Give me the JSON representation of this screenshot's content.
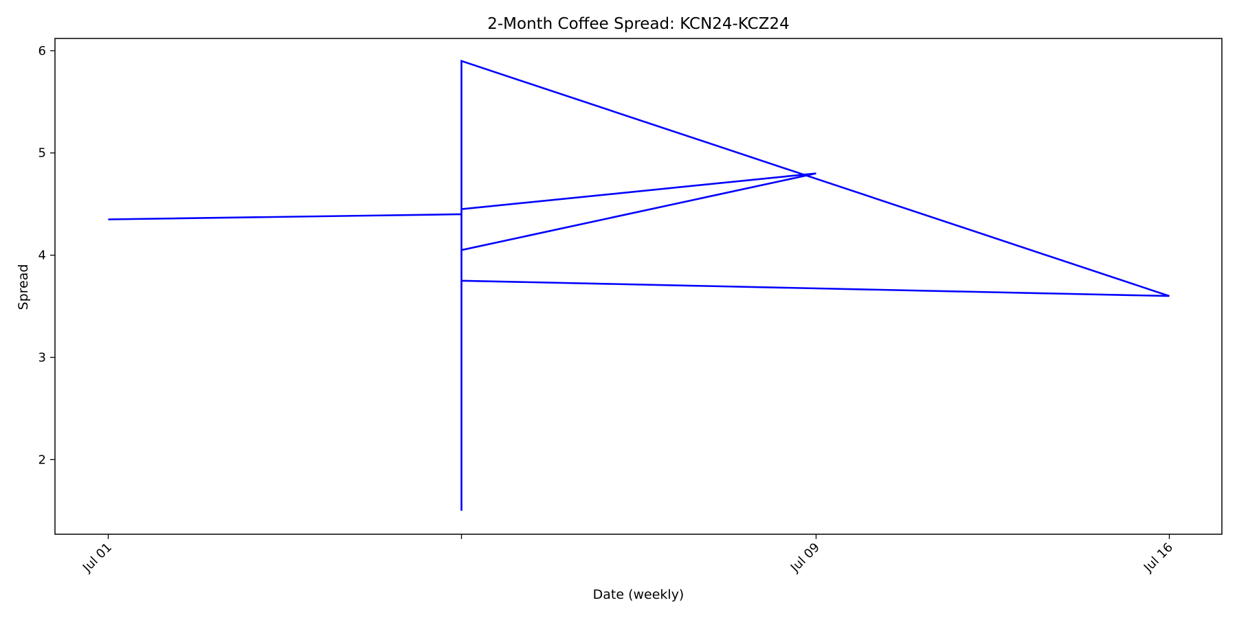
{
  "chart_data": {
    "type": "line",
    "title": "2-Month Coffee Spread: KCN24-KCZ24",
    "xlabel": "Date (weekly)",
    "ylabel": "Spread",
    "x_ticks": [
      "Jul 01",
      "",
      "Jul 09",
      "Jul 16"
    ],
    "y_ticks": [
      2,
      3,
      4,
      5,
      6
    ],
    "ylim": [
      1.27,
      6.12
    ],
    "grid": false,
    "legend": "none",
    "series": [
      {
        "color": "#0000ff",
        "points": [
          {
            "x": "Jul 01",
            "y": 4.35
          },
          {
            "x": "",
            "y": 4.4
          },
          {
            "x": "",
            "y": 1.5
          },
          {
            "x": "",
            "y": 5.9
          },
          {
            "x": "Jul 16",
            "y": 3.6
          },
          {
            "x": "",
            "y": 3.75
          },
          {
            "x": "",
            "y": 3.65
          },
          {
            "x": "",
            "y": 4.05
          },
          {
            "x": "Jul 09",
            "y": 4.8
          },
          {
            "x": "",
            "y": 4.45
          },
          {
            "x": "",
            "y": 4.4
          }
        ]
      }
    ]
  }
}
